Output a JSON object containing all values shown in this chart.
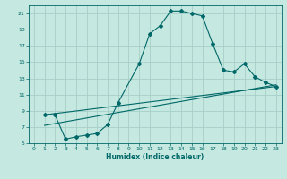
{
  "title": "",
  "xlabel": "Humidex (Indice chaleur)",
  "ylabel": "",
  "bg_color": "#c5e8e0",
  "grid_color": "#a8cfc8",
  "line_color": "#006868",
  "xlim": [
    -0.5,
    23.5
  ],
  "ylim": [
    5,
    22
  ],
  "xticks": [
    0,
    1,
    2,
    3,
    4,
    5,
    6,
    7,
    8,
    9,
    10,
    11,
    12,
    13,
    14,
    15,
    16,
    17,
    18,
    19,
    20,
    21,
    22,
    23
  ],
  "yticks": [
    5,
    7,
    9,
    11,
    13,
    15,
    17,
    19,
    21
  ],
  "curve1_x": [
    1,
    2,
    3,
    4,
    5,
    6,
    7,
    8,
    10,
    11,
    12,
    13,
    14,
    15,
    16,
    17,
    18,
    19,
    20,
    21,
    22,
    23
  ],
  "curve1_y": [
    8.5,
    8.5,
    5.5,
    5.8,
    6.0,
    6.2,
    7.3,
    10.0,
    14.8,
    18.5,
    19.5,
    21.3,
    21.3,
    21.0,
    20.7,
    17.2,
    14.0,
    13.8,
    14.8,
    13.2,
    12.5,
    12.0
  ],
  "curve2_x": [
    1,
    23
  ],
  "curve2_y": [
    7.2,
    12.2
  ],
  "curve3_x": [
    1,
    23
  ],
  "curve3_y": [
    8.5,
    12.0
  ]
}
